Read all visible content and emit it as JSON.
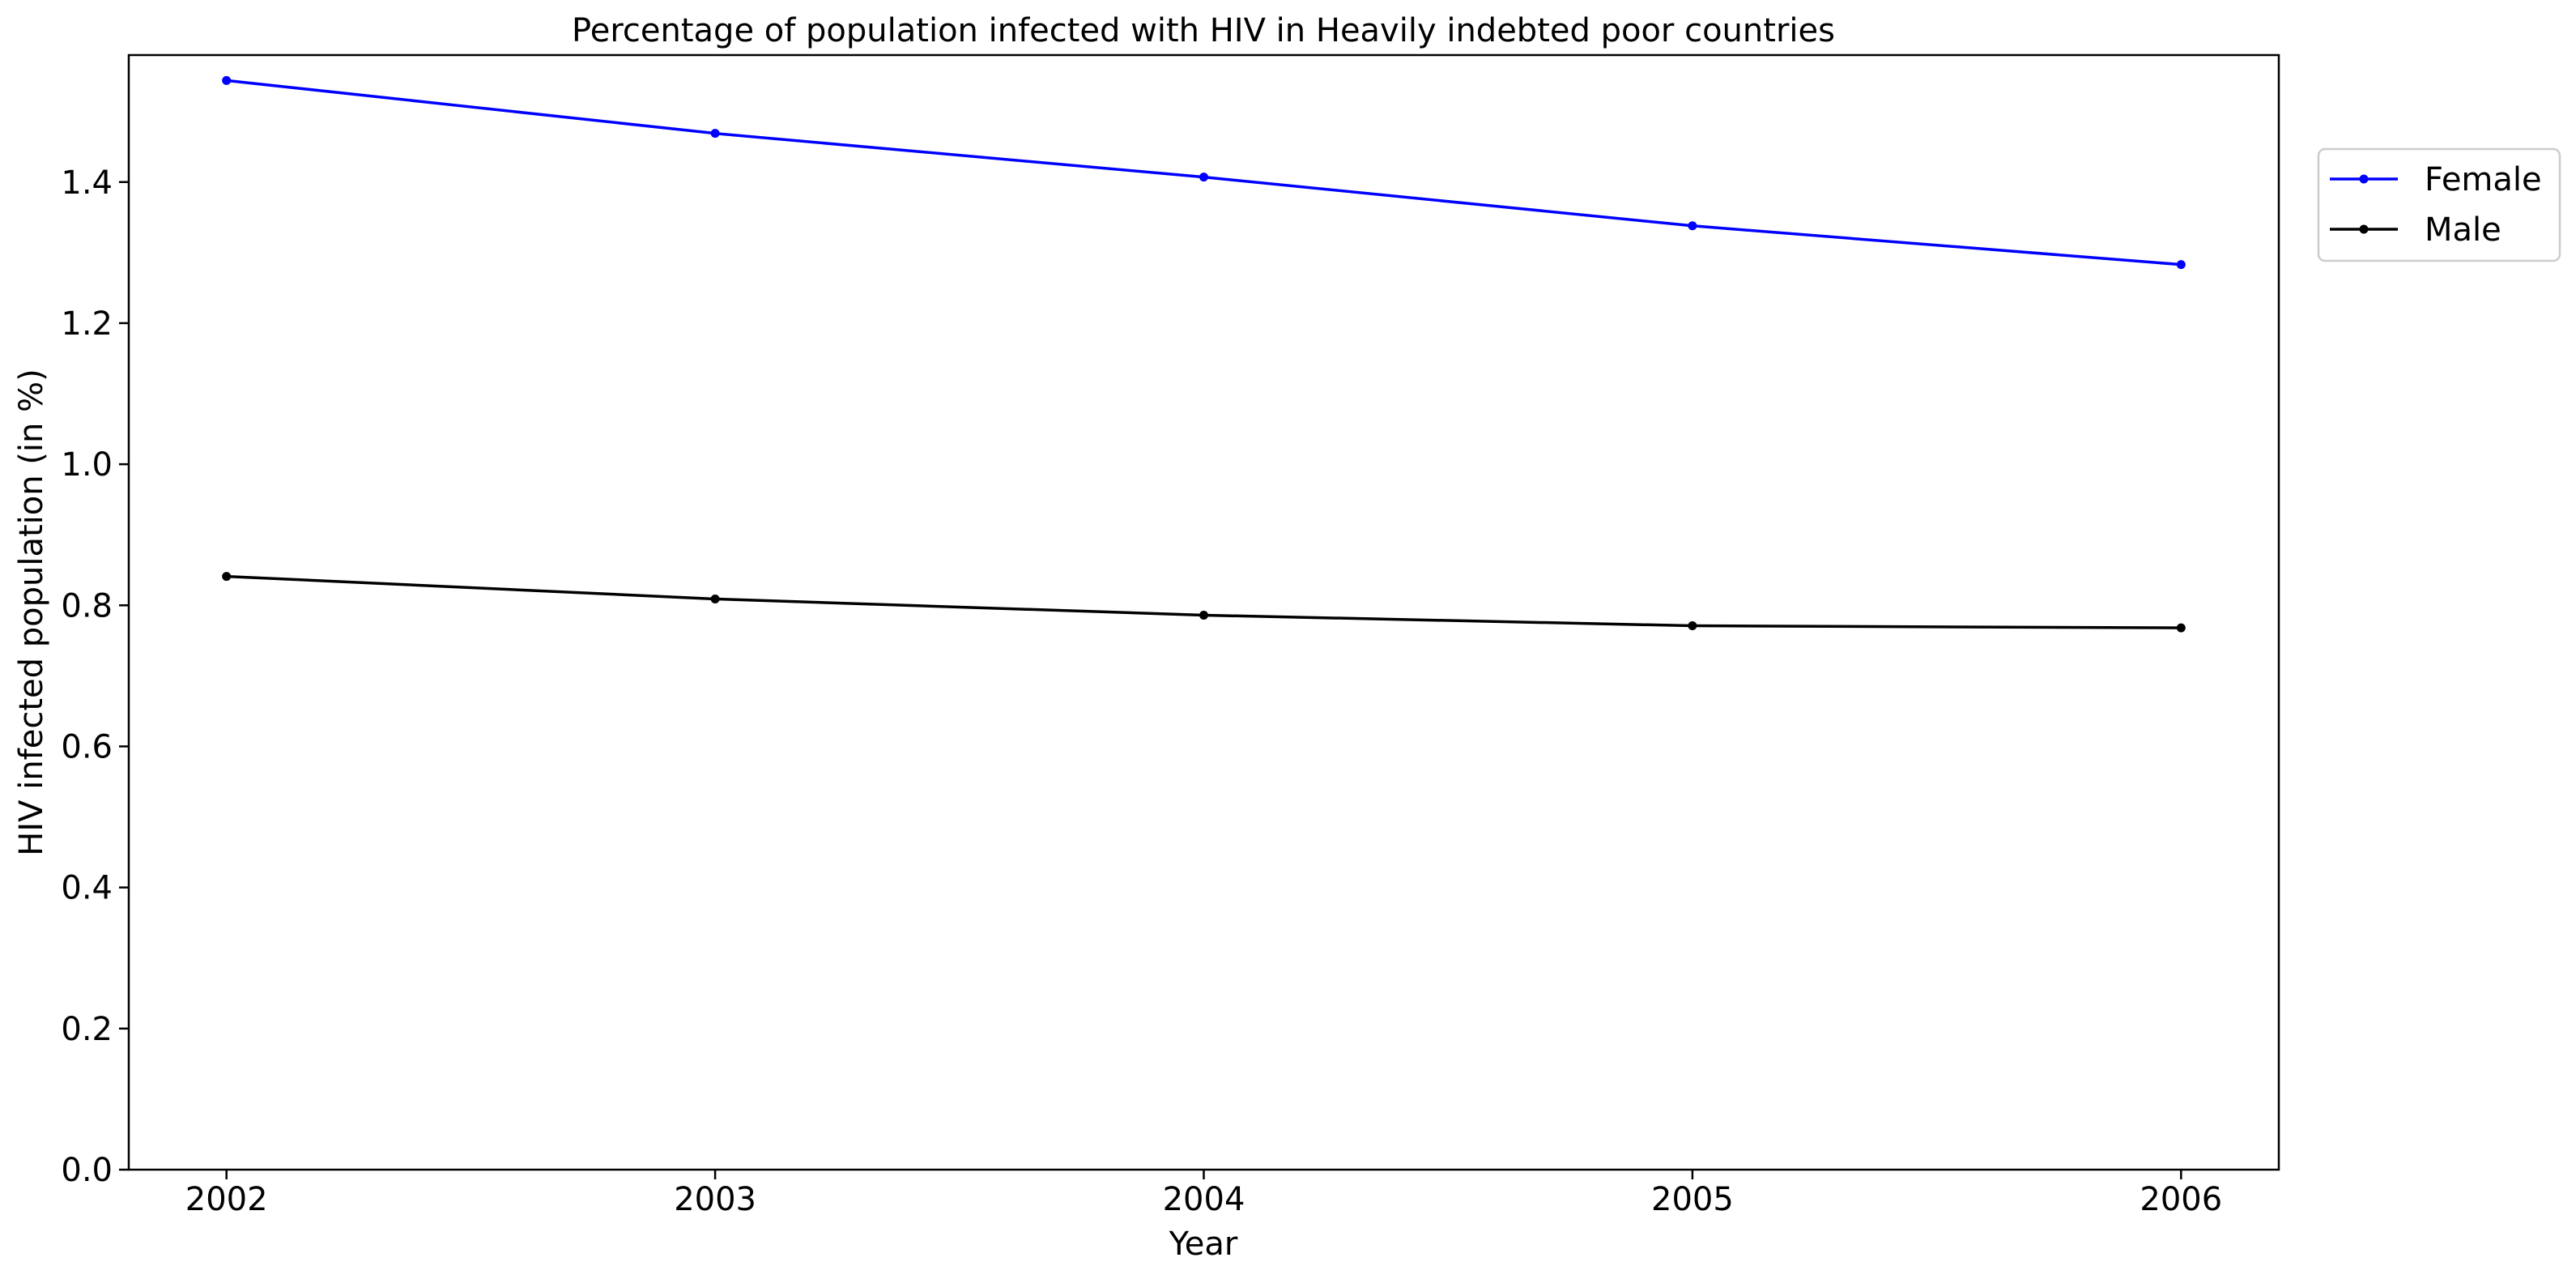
{
  "chart_data": {
    "type": "line",
    "title": "Percentage of population infected with HIV in Heavily indebted poor countries",
    "xlabel": "Year",
    "ylabel": "HIV infected population (in %)",
    "x": [
      "2002",
      "2003",
      "2004",
      "2005",
      "2006"
    ],
    "xlim": [
      2001.8,
      2006.2
    ],
    "ylim": [
      0.0,
      1.58
    ],
    "yticks": [
      "0.0",
      "0.2",
      "0.4",
      "0.6",
      "0.8",
      "1.0",
      "1.2",
      "1.4"
    ],
    "grid": false,
    "legend_position": "outside-top-right",
    "series": [
      {
        "name": "Female",
        "color": "#0000ff",
        "values": [
          1.544,
          1.469,
          1.407,
          1.338,
          1.283
        ]
      },
      {
        "name": "Male",
        "color": "#000000",
        "values": [
          0.841,
          0.809,
          0.786,
          0.771,
          0.768
        ]
      }
    ]
  }
}
